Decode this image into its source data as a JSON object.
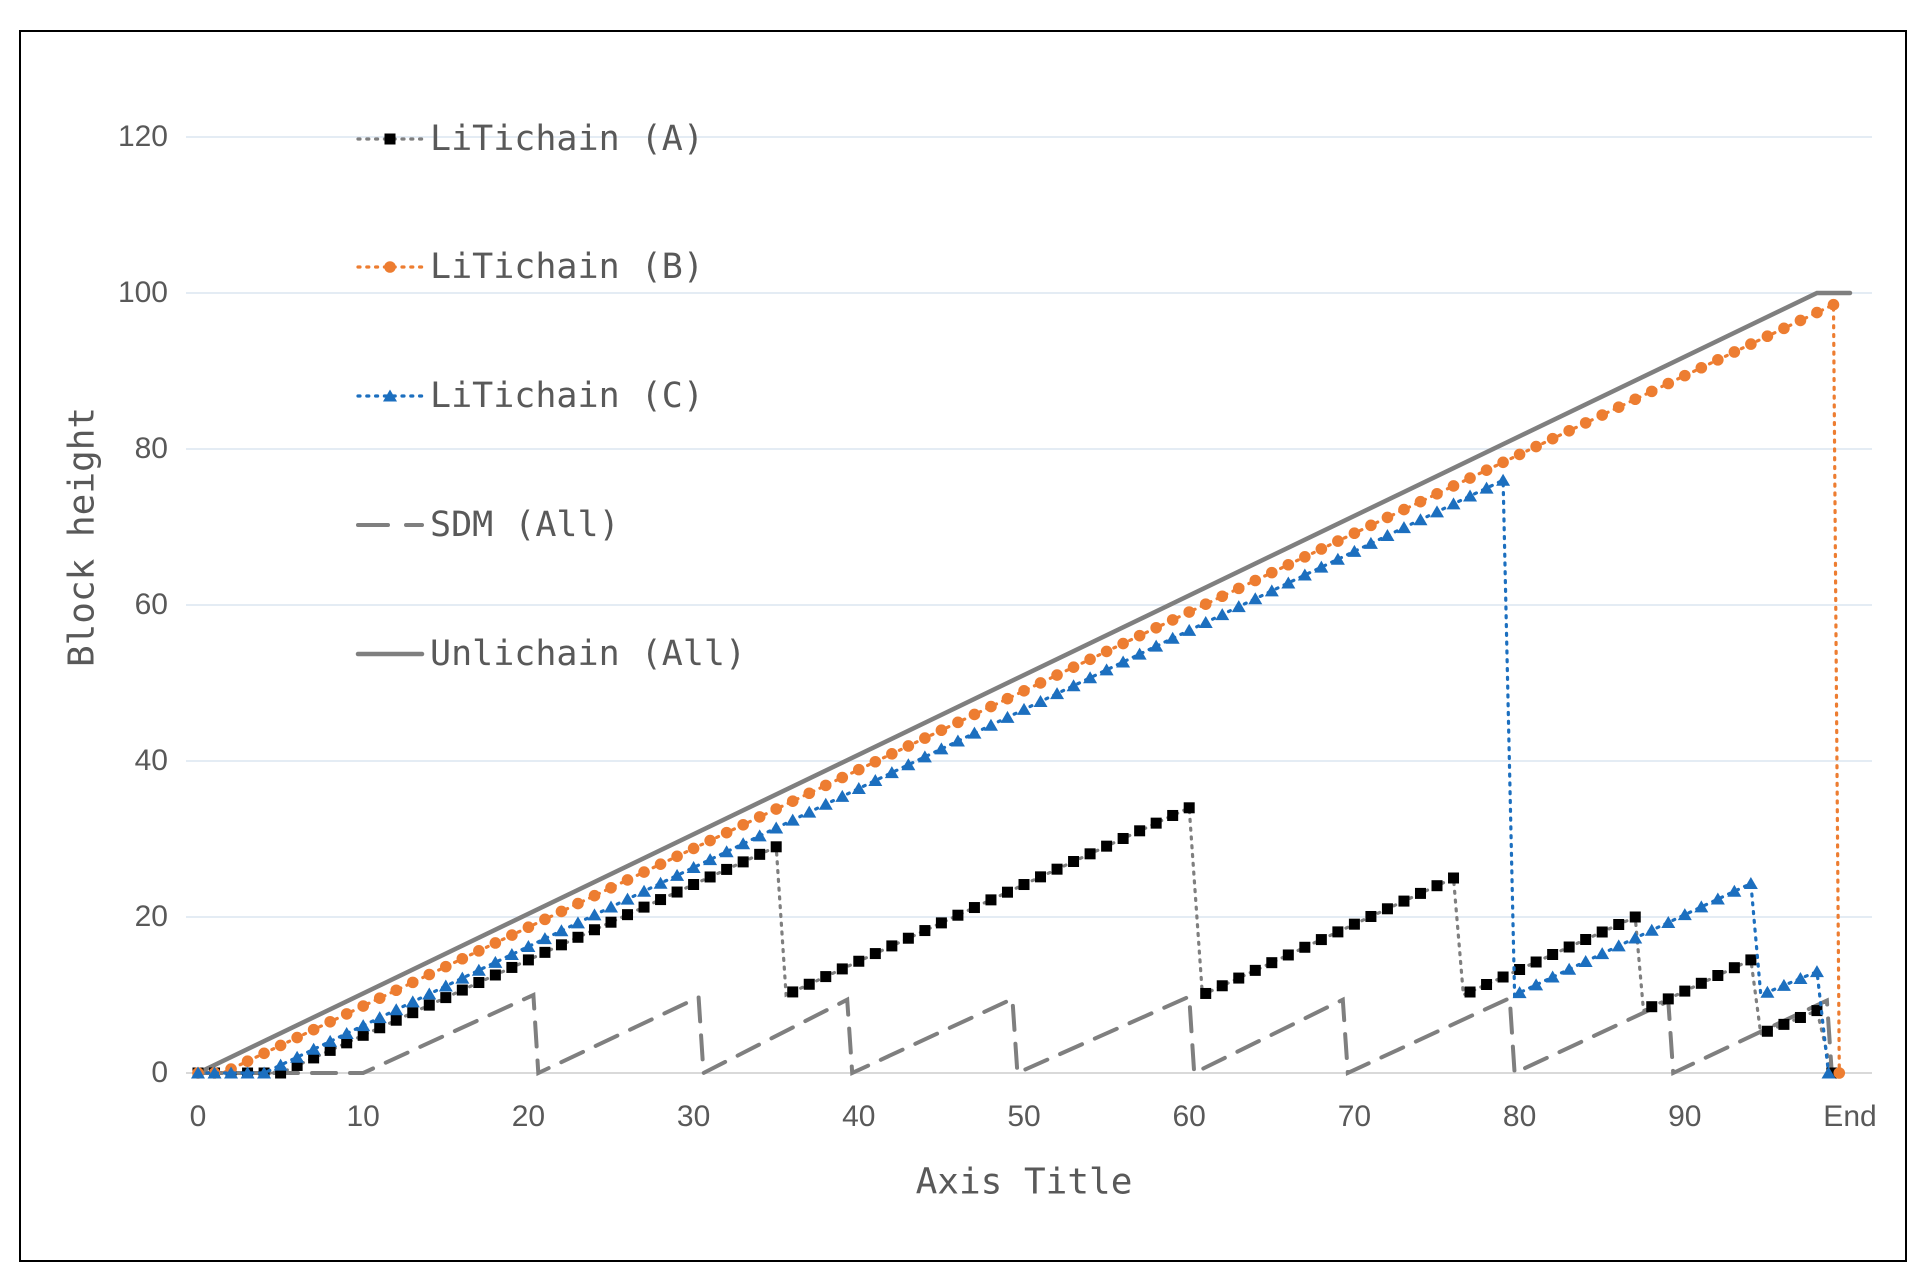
{
  "figure": {
    "background": "#ffffff",
    "border_color": "#000000",
    "text_color": "#595959",
    "gridline_color": "#dbe5f1",
    "axis_line_color": "#d9d9d9"
  },
  "axes": {
    "x_title": "Axis Title",
    "y_title": "Block height"
  },
  "legend": {
    "position": "inside-top-left"
  },
  "chart_data": {
    "type": "line",
    "title": "",
    "xlabel": "Axis Title",
    "ylabel": "Block height",
    "grid": "horizontal",
    "legend_position": "inside-top-left",
    "ylim": [
      0,
      120
    ],
    "y_ticks": [
      0,
      20,
      40,
      60,
      80,
      100,
      120
    ],
    "x_tick_labels": [
      "0",
      "10",
      "20",
      "30",
      "40",
      "50",
      "60",
      "70",
      "80",
      "90",
      "End"
    ],
    "x_tick_values": [
      0,
      10,
      20,
      30,
      40,
      50,
      60,
      70,
      80,
      90,
      100
    ],
    "marker_step": 1,
    "description": "Block height vs time. Dotted series carry one marker per unit of x along piecewise-linear segments defined by the breakpoints; near-vertical breakpoint pairs are chain-reset drops.",
    "series": [
      {
        "name": "LiTichain (A)",
        "marker": "square",
        "marker_color": "#000000",
        "line_color": "#7f7f7f",
        "line_style": "dotted",
        "points": [
          [
            0,
            0
          ],
          [
            5,
            0
          ],
          [
            35,
            29
          ],
          [
            35.6,
            10
          ],
          [
            60,
            34
          ],
          [
            60.8,
            10
          ],
          [
            76,
            25
          ],
          [
            76.6,
            10
          ],
          [
            87,
            20
          ],
          [
            87.5,
            8
          ],
          [
            94,
            14.5
          ],
          [
            94.6,
            5
          ],
          [
            98,
            8
          ],
          [
            98.9,
            0
          ]
        ]
      },
      {
        "name": "LiTichain (B)",
        "marker": "circle",
        "marker_color": "#ED7D31",
        "line_color": "#ED7D31",
        "line_style": "dotted",
        "points": [
          [
            0,
            0
          ],
          [
            1.5,
            0
          ],
          [
            99,
            98.5
          ],
          [
            99.35,
            0
          ]
        ]
      },
      {
        "name": "LiTichain (C)",
        "marker": "triangle",
        "marker_color": "#1C6FBF",
        "line_color": "#1C6FBF",
        "line_style": "dotted",
        "points": [
          [
            0,
            0
          ],
          [
            4,
            0
          ],
          [
            79,
            76
          ],
          [
            79.7,
            10
          ],
          [
            94,
            24.3
          ],
          [
            94.6,
            10
          ],
          [
            98,
            13
          ],
          [
            98.7,
            0
          ]
        ]
      },
      {
        "name": "SDM (All)",
        "marker": "none",
        "marker_color": "#7f7f7f",
        "line_color": "#7f7f7f",
        "line_style": "dashed",
        "points": [
          [
            0,
            0
          ],
          [
            10,
            0
          ],
          [
            20.3,
            10
          ],
          [
            20.6,
            0
          ],
          [
            30.3,
            9.7
          ],
          [
            30.6,
            0
          ],
          [
            39.3,
            9.4
          ],
          [
            39.6,
            0
          ],
          [
            49.3,
            9.5
          ],
          [
            49.6,
            0
          ],
          [
            60,
            9.8
          ],
          [
            60.3,
            0
          ],
          [
            69.3,
            9.4
          ],
          [
            69.6,
            0
          ],
          [
            79.4,
            9.6
          ],
          [
            79.7,
            0
          ],
          [
            89,
            9.2
          ],
          [
            89.3,
            0
          ],
          [
            98.6,
            9.3
          ],
          [
            98.9,
            0
          ],
          [
            100,
            0
          ]
        ]
      },
      {
        "name": "Unlichain (All)",
        "marker": "none",
        "marker_color": "#7f7f7f",
        "line_color": "#7f7f7f",
        "line_style": "solid",
        "points": [
          [
            0,
            0
          ],
          [
            98,
            100
          ],
          [
            100,
            100
          ]
        ]
      }
    ]
  }
}
